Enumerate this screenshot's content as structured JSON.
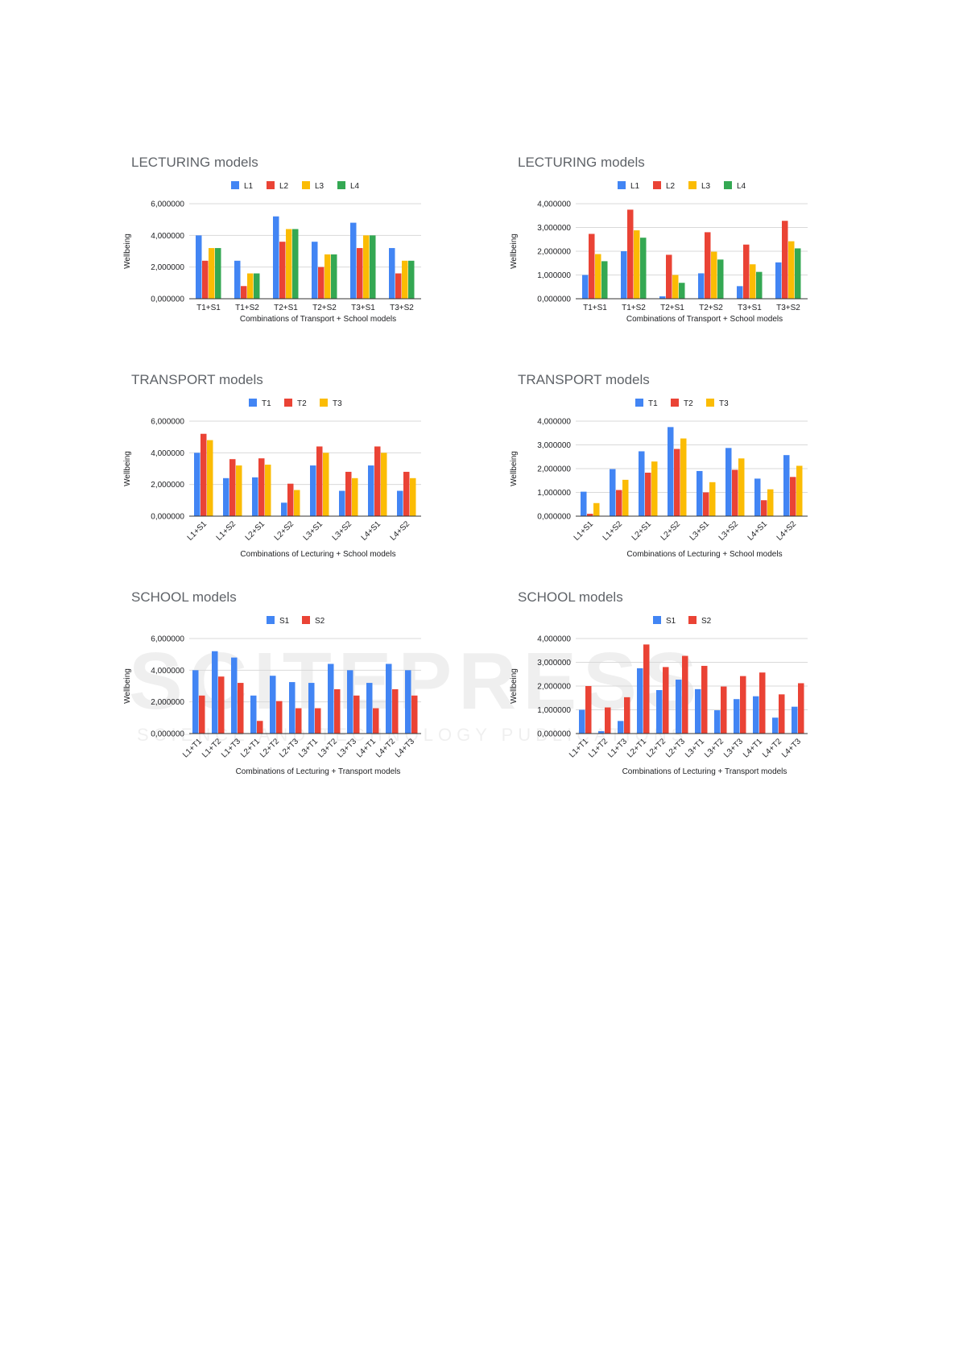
{
  "colors": {
    "blue": "#4285f4",
    "red": "#ea4335",
    "yellow": "#fbbc04",
    "green": "#34a853"
  },
  "watermark": {
    "text": "SCITEPRESS",
    "subtext": "SCIENCE AND TECHNOLOGY PUBLICATIONS"
  },
  "chart_data": [
    {
      "type": "bar",
      "title": "LECTURING models",
      "xlabel": "Combinations of Transport + School models",
      "ylabel": "Wellbeing",
      "ylim": [
        0,
        6
      ],
      "yticks": [
        "0,000000",
        "2,000000",
        "4,000000",
        "6,000000"
      ],
      "categories": [
        "T1+S1",
        "T1+S2",
        "T2+S1",
        "T2+S2",
        "T3+S1",
        "T3+S2"
      ],
      "rotate_labels": false,
      "grid": true,
      "legend_position": "top",
      "series": [
        {
          "name": "L1",
          "color": "#4285f4",
          "values": [
            4.0,
            2.4,
            5.2,
            3.6,
            4.8,
            3.2
          ]
        },
        {
          "name": "L2",
          "color": "#ea4335",
          "values": [
            2.4,
            0.8,
            3.6,
            2.0,
            3.2,
            1.6
          ]
        },
        {
          "name": "L3",
          "color": "#fbbc04",
          "values": [
            3.2,
            1.6,
            4.4,
            2.8,
            4.0,
            2.4
          ]
        },
        {
          "name": "L4",
          "color": "#34a853",
          "values": [
            3.2,
            1.6,
            4.4,
            2.8,
            4.0,
            2.4
          ]
        }
      ]
    },
    {
      "type": "bar",
      "title": "LECTURING models",
      "xlabel": "Combinations of Transport + School models",
      "ylabel": "Wellbeing",
      "ylim": [
        0,
        4
      ],
      "yticks": [
        "0,000000",
        "1,000000",
        "2,000000",
        "3,000000",
        "4,000000"
      ],
      "categories": [
        "T1+S1",
        "T1+S2",
        "T2+S1",
        "T2+S2",
        "T3+S1",
        "T3+S2"
      ],
      "rotate_labels": false,
      "grid": true,
      "legend_position": "top",
      "series": [
        {
          "name": "L1",
          "color": "#4285f4",
          "values": [
            1.0,
            2.0,
            0.1,
            1.07,
            0.53,
            1.53
          ]
        },
        {
          "name": "L2",
          "color": "#ea4335",
          "values": [
            2.73,
            3.75,
            1.85,
            2.8,
            2.28,
            3.28
          ]
        },
        {
          "name": "L3",
          "color": "#fbbc04",
          "values": [
            1.88,
            2.88,
            1.0,
            1.98,
            1.45,
            2.42
          ]
        },
        {
          "name": "L4",
          "color": "#34a853",
          "values": [
            1.58,
            2.57,
            0.67,
            1.65,
            1.13,
            2.12
          ]
        }
      ]
    },
    {
      "type": "bar",
      "title": "TRANSPORT models",
      "xlabel": "Combinations of Lecturing + School models",
      "ylabel": "Wellbeing",
      "ylim": [
        0,
        6
      ],
      "yticks": [
        "0,000000",
        "2,000000",
        "4,000000",
        "6,000000"
      ],
      "categories": [
        "L1+S1",
        "L1+S2",
        "L2+S1",
        "L2+S2",
        "L3+S1",
        "L3+S2",
        "L4+S1",
        "L4+S2"
      ],
      "rotate_labels": true,
      "grid": true,
      "legend_position": "top",
      "series": [
        {
          "name": "T1",
          "color": "#4285f4",
          "values": [
            4.0,
            2.4,
            2.45,
            0.85,
            3.2,
            1.6,
            3.2,
            1.6
          ]
        },
        {
          "name": "T2",
          "color": "#ea4335",
          "values": [
            5.2,
            3.6,
            3.65,
            2.05,
            4.4,
            2.8,
            4.4,
            2.8
          ]
        },
        {
          "name": "T3",
          "color": "#fbbc04",
          "values": [
            4.8,
            3.2,
            3.25,
            1.65,
            4.0,
            2.4,
            4.0,
            2.4
          ]
        }
      ]
    },
    {
      "type": "bar",
      "title": "TRANSPORT models",
      "xlabel": "Combinations of Lecturing + School models",
      "ylabel": "Wellbeing",
      "ylim": [
        0,
        4
      ],
      "yticks": [
        "0,000000",
        "1,000000",
        "2,000000",
        "3,000000",
        "4,000000"
      ],
      "categories": [
        "L1+S1",
        "L1+S2",
        "L2+S1",
        "L2+S2",
        "L3+S1",
        "L3+S2",
        "L4+S1",
        "L4+S2"
      ],
      "rotate_labels": true,
      "grid": true,
      "legend_position": "top",
      "series": [
        {
          "name": "T1",
          "color": "#4285f4",
          "values": [
            1.03,
            1.98,
            2.73,
            3.75,
            1.9,
            2.87,
            1.58,
            2.57
          ]
        },
        {
          "name": "T2",
          "color": "#ea4335",
          "values": [
            0.1,
            1.1,
            1.83,
            2.83,
            1.0,
            1.95,
            0.67,
            1.65
          ]
        },
        {
          "name": "T3",
          "color": "#fbbc04",
          "values": [
            0.55,
            1.53,
            2.3,
            3.27,
            1.43,
            2.43,
            1.13,
            2.12
          ]
        }
      ]
    },
    {
      "type": "bar",
      "title": "SCHOOL models",
      "xlabel": "Combinations of Lecturing + Transport models",
      "ylabel": "Wellbeing",
      "ylim": [
        0,
        6
      ],
      "yticks": [
        "0,000000",
        "2,000000",
        "4,000000",
        "6,000000"
      ],
      "categories": [
        "L1+T1",
        "L1+T2",
        "L1+T3",
        "L2+T1",
        "L2+T2",
        "L2+T3",
        "L3+T1",
        "L3+T2",
        "L3+T3",
        "L4+T1",
        "L4+T2",
        "L4+T3"
      ],
      "rotate_labels": true,
      "grid": true,
      "legend_position": "top",
      "series": [
        {
          "name": "S1",
          "color": "#4285f4",
          "values": [
            4.0,
            5.2,
            4.8,
            2.4,
            3.65,
            3.25,
            3.2,
            4.4,
            4.0,
            3.2,
            4.4,
            4.0
          ]
        },
        {
          "name": "S2",
          "color": "#ea4335",
          "values": [
            2.4,
            3.6,
            3.2,
            0.8,
            2.05,
            1.6,
            1.6,
            2.8,
            2.4,
            1.6,
            2.8,
            2.4
          ]
        }
      ]
    },
    {
      "type": "bar",
      "title": "SCHOOL models",
      "xlabel": "Combinations of Lecturing + Transport models",
      "ylabel": "Wellbeing",
      "ylim": [
        0,
        4
      ],
      "yticks": [
        "0,000000",
        "1,000000",
        "2,000000",
        "3,000000",
        "4,000000"
      ],
      "categories": [
        "L1+T1",
        "L1+T2",
        "L1+T3",
        "L2+T1",
        "L2+T2",
        "L2+T3",
        "L3+T1",
        "L3+T2",
        "L3+T3",
        "L4+T1",
        "L4+T2",
        "L4+T3"
      ],
      "rotate_labels": true,
      "grid": true,
      "legend_position": "top",
      "series": [
        {
          "name": "S1",
          "color": "#4285f4",
          "values": [
            1.0,
            0.1,
            0.53,
            2.75,
            1.83,
            2.27,
            1.87,
            0.98,
            1.45,
            1.57,
            0.67,
            1.13
          ]
        },
        {
          "name": "S2",
          "color": "#ea4335",
          "values": [
            2.0,
            1.1,
            1.53,
            3.75,
            2.8,
            3.27,
            2.85,
            1.98,
            2.42,
            2.57,
            1.65,
            2.12
          ]
        }
      ]
    }
  ]
}
